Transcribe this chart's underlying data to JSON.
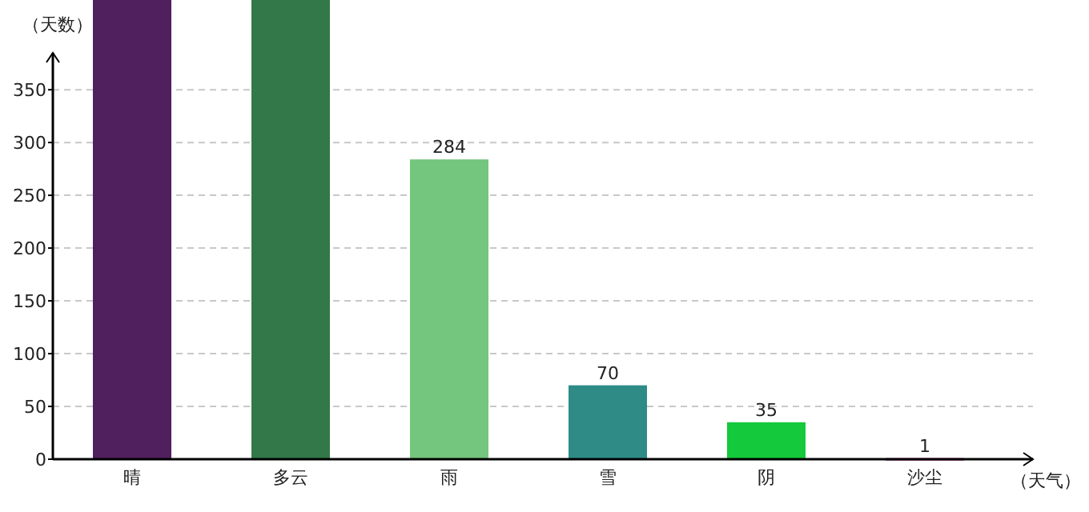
{
  "chart_data": {
    "type": "bar",
    "xlabel": "（天气）",
    "ylabel": "（天数）",
    "categories": [
      "晴",
      "多云",
      "雨",
      "雪",
      "阴",
      "沙尘"
    ],
    "values": [
      435,
      435,
      284,
      70,
      35,
      1
    ],
    "colors": [
      "#4f1f5e",
      "#337848",
      "#74c57d",
      "#2e8b86",
      "#14c93c",
      "#a0308a"
    ],
    "value_labels": [
      null,
      null,
      "284",
      "70",
      "35",
      "1"
    ],
    "ylim": [
      0,
      435
    ],
    "yticks": [
      0,
      50,
      100,
      150,
      200,
      250,
      300,
      350
    ],
    "grid": "y"
  }
}
